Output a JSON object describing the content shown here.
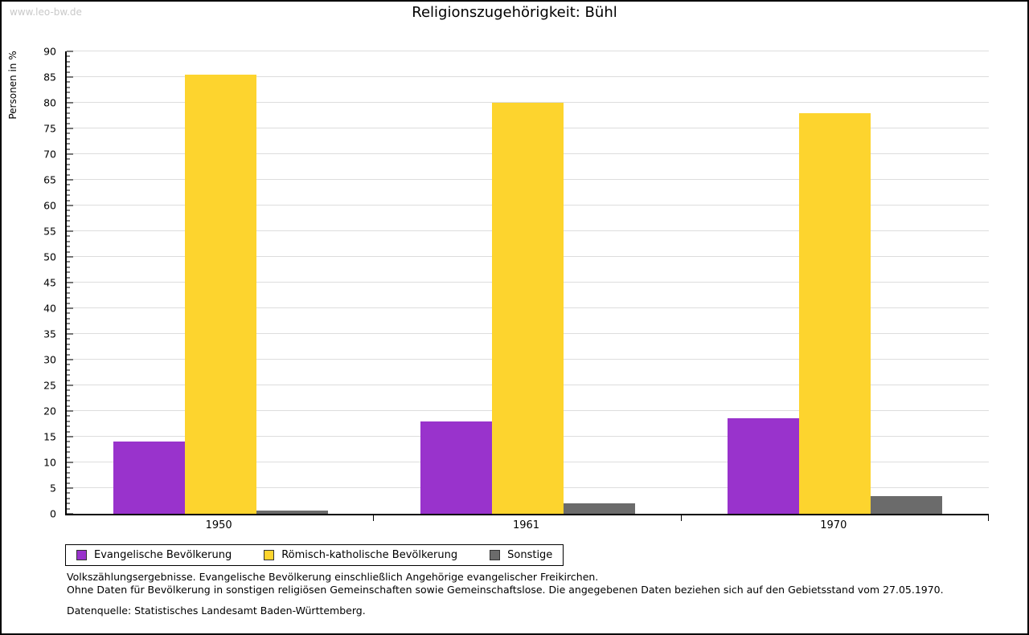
{
  "watermark": "www.leo-bw.de",
  "chart_data": {
    "type": "bar",
    "title": "Religionszugehörigkeit: Bühl",
    "categories": [
      "1950",
      "1961",
      "1970"
    ],
    "series": [
      {
        "name": "Evangelische Bevölkerung",
        "color": "#9933cc",
        "values": [
          14.0,
          17.9,
          18.6
        ]
      },
      {
        "name": "Römisch-katholische Bevölkerung",
        "color": "#fdd42e",
        "values": [
          85.5,
          80.0,
          78.0
        ]
      },
      {
        "name": "Sonstige",
        "color": "#6b6b6b",
        "values": [
          0.6,
          2.1,
          3.5
        ]
      }
    ],
    "xlabel": "",
    "ylabel": "Personen in %",
    "ylim": [
      0,
      90
    ],
    "ytick_step": 5,
    "minor_tick_step": 1,
    "grid": true,
    "legend_position": "bottom-left"
  },
  "notes": {
    "line1": "Volkszählungsergebnisse. Evangelische Bevölkerung einschließlich Angehörige evangelischer Freikirchen.",
    "line2": "Ohne Daten für Bevölkerung in sonstigen religiösen Gemeinschaften sowie Gemeinschaftslose. Die angegebenen Daten beziehen sich auf den Gebietsstand vom 27.05.1970.",
    "source": "Datenquelle: Statistisches Landesamt Baden-Württemberg."
  }
}
